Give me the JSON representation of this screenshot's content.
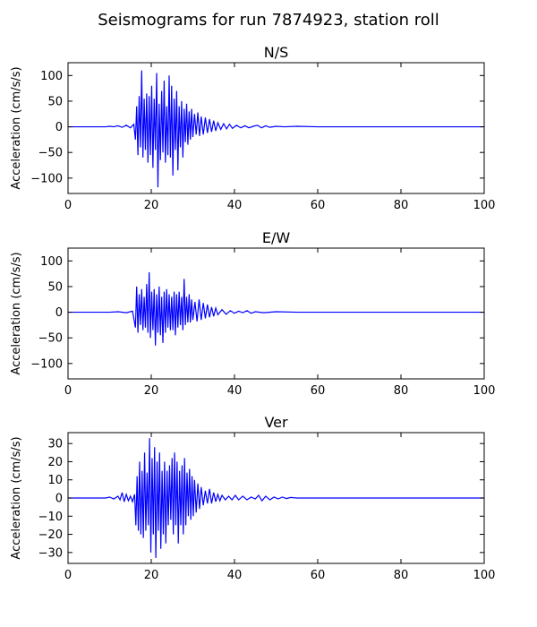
{
  "suptitle": "Seismograms for run 7874923, station roll",
  "chart_data": [
    {
      "type": "line",
      "title": "N/S",
      "ylabel": "Acceleration (cm/s/s)",
      "xlabel": "",
      "xlim": [
        0,
        100
      ],
      "ylim": [
        -130,
        125
      ],
      "xticks": [
        0,
        20,
        40,
        60,
        80,
        100
      ],
      "yticks": [
        -100,
        -50,
        0,
        50,
        100
      ],
      "grid": false,
      "color": "#0000ff",
      "series": [
        {
          "x": [
            0,
            9,
            10,
            11,
            12,
            13,
            14,
            15,
            15.8,
            16.2,
            16.5,
            16.8,
            17.1,
            17.4,
            17.7,
            18.0,
            18.3,
            18.6,
            18.9,
            19.2,
            19.5,
            19.8,
            20.1,
            20.4,
            20.7,
            21.0,
            21.3,
            21.6,
            21.9,
            22.2,
            22.5,
            22.8,
            23.1,
            23.4,
            23.7,
            24.0,
            24.3,
            24.6,
            24.9,
            25.2,
            25.5,
            25.8,
            26.1,
            26.4,
            26.7,
            27.0,
            27.3,
            27.6,
            27.9,
            28.2,
            28.5,
            28.8,
            29.1,
            29.4,
            29.7,
            30.0,
            30.4,
            30.8,
            31.2,
            31.6,
            32.0,
            32.5,
            33.0,
            33.5,
            34.0,
            34.5,
            35.0,
            35.5,
            36.0,
            36.7,
            37.4,
            38.1,
            38.8,
            39.5,
            40.5,
            41.5,
            42.5,
            43.5,
            44.5,
            45.5,
            46.5,
            47.5,
            48.5,
            50,
            52,
            55,
            60,
            70,
            80,
            90,
            100
          ],
          "y": [
            0,
            0,
            1,
            0,
            2,
            -1,
            3,
            -2,
            5,
            -25,
            40,
            -55,
            60,
            -40,
            110,
            -60,
            55,
            -45,
            65,
            -70,
            60,
            -55,
            80,
            -80,
            55,
            -45,
            105,
            -118,
            45,
            -65,
            70,
            -50,
            90,
            -70,
            40,
            -55,
            100,
            -60,
            80,
            -95,
            55,
            -45,
            70,
            -85,
            40,
            -40,
            50,
            -60,
            35,
            -30,
            45,
            -35,
            30,
            -25,
            35,
            -20,
            25,
            -15,
            28,
            -18,
            20,
            -15,
            18,
            -12,
            15,
            -10,
            12,
            -8,
            8,
            -5,
            6,
            -4,
            5,
            -3,
            3,
            -2,
            2,
            -2,
            1,
            3,
            -2,
            2,
            -1,
            1,
            0,
            1,
            0,
            0,
            0,
            0,
            0
          ]
        }
      ]
    },
    {
      "type": "line",
      "title": "E/W",
      "ylabel": "Acceleration (cm/s/s)",
      "xlabel": "",
      "xlim": [
        0,
        100
      ],
      "ylim": [
        -130,
        125
      ],
      "xticks": [
        0,
        20,
        40,
        60,
        80,
        100
      ],
      "yticks": [
        -100,
        -50,
        0,
        50,
        100
      ],
      "grid": false,
      "color": "#0000ff",
      "series": [
        {
          "x": [
            0,
            10,
            12,
            14,
            15.5,
            16.2,
            16.5,
            16.8,
            17.1,
            17.4,
            17.7,
            18.0,
            18.3,
            18.6,
            18.9,
            19.2,
            19.5,
            19.8,
            20.1,
            20.4,
            20.7,
            21.0,
            21.3,
            21.6,
            21.9,
            22.2,
            22.5,
            22.8,
            23.1,
            23.4,
            23.7,
            24.0,
            24.3,
            24.6,
            24.9,
            25.2,
            25.5,
            25.8,
            26.1,
            26.4,
            26.7,
            27.0,
            27.3,
            27.6,
            27.9,
            28.2,
            28.5,
            28.8,
            29.1,
            29.4,
            29.7,
            30.0,
            30.5,
            31.0,
            31.5,
            32.0,
            32.5,
            33.0,
            33.5,
            34.0,
            34.5,
            35.0,
            35.5,
            36.0,
            37.0,
            38.0,
            39.0,
            40.0,
            41.0,
            42.0,
            43.0,
            44.0,
            45.0,
            47.0,
            50,
            55,
            60,
            70,
            80,
            90,
            100
          ],
          "y": [
            0,
            0,
            1,
            -1,
            2,
            -30,
            50,
            -40,
            35,
            -25,
            45,
            -35,
            30,
            -30,
            55,
            -40,
            78,
            -50,
            40,
            -35,
            45,
            -65,
            35,
            -40,
            50,
            -45,
            30,
            -60,
            40,
            -40,
            45,
            -30,
            35,
            -35,
            30,
            -35,
            40,
            -45,
            35,
            -30,
            40,
            -25,
            30,
            -35,
            65,
            -25,
            30,
            -20,
            35,
            -20,
            25,
            -15,
            20,
            -18,
            25,
            -15,
            18,
            -12,
            15,
            -10,
            10,
            -8,
            8,
            -5,
            5,
            -4,
            3,
            -2,
            2,
            -1,
            3,
            -2,
            1,
            -1,
            1,
            0,
            0,
            0,
            0,
            0,
            0
          ]
        }
      ]
    },
    {
      "type": "line",
      "title": "Ver",
      "ylabel": "Acceleration (cm/s/s)",
      "xlabel": "",
      "xlim": [
        0,
        100
      ],
      "ylim": [
        -36,
        36
      ],
      "xticks": [
        0,
        20,
        40,
        60,
        80,
        100
      ],
      "yticks": [
        -30,
        -20,
        -10,
        0,
        10,
        20,
        30
      ],
      "grid": false,
      "color": "#0000ff",
      "series": [
        {
          "x": [
            0,
            9,
            10,
            11,
            12,
            12.5,
            13,
            13.5,
            14,
            14.5,
            15,
            15.5,
            16,
            16.3,
            16.6,
            16.9,
            17.2,
            17.5,
            17.8,
            18.1,
            18.4,
            18.7,
            19.0,
            19.3,
            19.6,
            19.9,
            20.2,
            20.5,
            20.8,
            21.1,
            21.4,
            21.7,
            22.0,
            22.3,
            22.6,
            22.9,
            23.2,
            23.5,
            23.8,
            24.1,
            24.4,
            24.7,
            25.0,
            25.3,
            25.6,
            25.9,
            26.2,
            26.5,
            26.8,
            27.1,
            27.4,
            27.7,
            28.0,
            28.3,
            28.6,
            28.9,
            29.2,
            29.5,
            29.8,
            30.1,
            30.4,
            30.8,
            31.2,
            31.6,
            32.0,
            32.5,
            33.0,
            33.5,
            34.0,
            34.5,
            35.0,
            35.5,
            36.0,
            36.5,
            37.0,
            37.8,
            38.6,
            39.4,
            40.2,
            41.0,
            42.0,
            43.0,
            44.0,
            45.0,
            45.8,
            46.6,
            47.5,
            48.5,
            49.5,
            50.5,
            51.5,
            52.5,
            53.5,
            55,
            60,
            70,
            80,
            90,
            100
          ],
          "y": [
            0,
            0,
            0.5,
            -0.5,
            1,
            -1,
            3,
            -2,
            2,
            -1.5,
            1,
            -2,
            2,
            -15,
            12,
            -18,
            20,
            -20,
            15,
            -22,
            25,
            -18,
            14,
            -15,
            33,
            -30,
            22,
            -20,
            28,
            -33,
            20,
            -18,
            25,
            -28,
            15,
            -20,
            20,
            -25,
            15,
            -15,
            18,
            -12,
            22,
            -20,
            25,
            -15,
            20,
            -25,
            15,
            -15,
            18,
            -20,
            22,
            -15,
            14,
            -10,
            16,
            -12,
            12,
            -10,
            10,
            -8,
            8,
            -6,
            6,
            -4,
            4,
            -3,
            5,
            -3,
            3,
            -2,
            2,
            -1.5,
            1.5,
            -1,
            1,
            -1,
            1.5,
            -1,
            1,
            -1,
            0.5,
            -0.5,
            1.5,
            -1.5,
            1,
            -1,
            0.5,
            -0.5,
            0.5,
            -0.3,
            0.3,
            0,
            0,
            0,
            0,
            0,
            0
          ]
        }
      ]
    }
  ]
}
